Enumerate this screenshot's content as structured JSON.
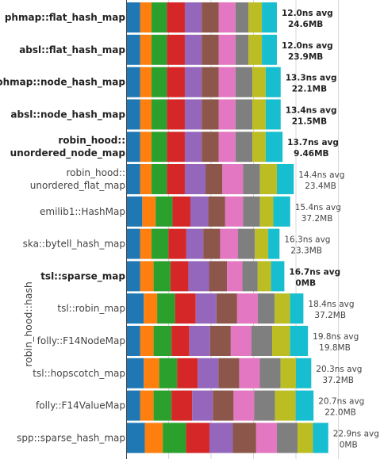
{
  "chart_data": {
    "type": "bar",
    "orientation": "horizontal",
    "stacked": true,
    "ylabel": "robin_hood::hash",
    "xlabel": "",
    "title": "",
    "grid": "vertical",
    "segment_colors": [
      "#1f77b4",
      "#ff7f0e",
      "#2ca02c",
      "#d62728",
      "#9467bd",
      "#8c564b",
      "#e377c2",
      "#7f7f7f",
      "#bcbd22",
      "#17becf"
    ],
    "categories": [
      {
        "label": [
          "phmap::flat_hash_map"
        ],
        "avg": "12.0ns avg",
        "mem": "24.6MB",
        "bold": true,
        "segments": [
          10.5,
          8.9,
          12.1,
          14.1,
          13.3,
          13.3,
          13.3,
          10.3,
          10.5,
          11.8
        ]
      },
      {
        "label": [
          "absl::flat_hash_map"
        ],
        "avg": "12.0ns avg",
        "mem": "23.9MB",
        "bold": true,
        "segments": [
          10.5,
          8.9,
          12.1,
          14.1,
          13.3,
          13.3,
          13.3,
          10.3,
          10.5,
          11.8
        ]
      },
      {
        "label": [
          "phmap::node_hash_map"
        ],
        "avg": "13.3ns avg",
        "mem": "22.1MB",
        "bold": true,
        "segments": [
          10.5,
          8.9,
          12.1,
          14.1,
          13.3,
          13.3,
          13.3,
          13.3,
          10.5,
          11.8
        ]
      },
      {
        "label": [
          "absl::node_hash_map"
        ],
        "avg": "13.4ns avg",
        "mem": "21.5MB",
        "bold": true,
        "segments": [
          10.5,
          8.9,
          12.1,
          14.1,
          13.3,
          13.3,
          13.3,
          13.3,
          10.5,
          11.8
        ]
      },
      {
        "label": [
          "robin_hood::",
          "unordered_node_map"
        ],
        "avg": "13.7ns avg",
        "mem": "9.46MB",
        "bold": true,
        "segments": [
          10.5,
          8.9,
          12.1,
          14.1,
          13.3,
          13.3,
          13.3,
          13.3,
          10.5,
          13.3
        ]
      },
      {
        "label": [
          "robin_hood::",
          "unordered_flat_map"
        ],
        "avg": "14.4ns avg",
        "mem": "23.4MB",
        "bold": false,
        "segments": [
          10.5,
          8.9,
          12.1,
          14.1,
          16.3,
          13.3,
          16.3,
          13.3,
          13.3,
          13.3
        ]
      },
      {
        "label": [
          "emilib1::HashMap"
        ],
        "avg": "15.4ns avg",
        "mem": "37.2MB",
        "bold": false,
        "segments": [
          12.1,
          10.5,
          13.3,
          14.1,
          14.1,
          13.3,
          14.1,
          13.3,
          10.5,
          13.3
        ]
      },
      {
        "label": [
          "ska::bytell_hash_map"
        ],
        "avg": "16.3ns avg",
        "mem": "23.3MB",
        "bold": false,
        "segments": [
          10.5,
          8.9,
          13.3,
          14.1,
          13.3,
          13.3,
          14.1,
          13.3,
          10.5,
          8.9
        ]
      },
      {
        "label": [
          "tsl::sparse_map"
        ],
        "avg": "16.7ns avg",
        "mem": "0MB",
        "bold": true,
        "segments": [
          10.5,
          10.5,
          13.3,
          14.1,
          16.3,
          14.1,
          12.1,
          12.1,
          10.5,
          10.5
        ]
      },
      {
        "label": [
          "tsl::robin_map"
        ],
        "avg": "18.4ns avg",
        "mem": "37.2MB",
        "bold": false,
        "segments": [
          13.3,
          10.5,
          14.1,
          16.3,
          16.3,
          16.3,
          16.3,
          13.3,
          12.1,
          10.5
        ]
      },
      {
        "label": [
          "folly::F14NodeMap"
        ],
        "avg": "19.8ns avg",
        "mem": "19.8MB",
        "bold": false,
        "segments": [
          10.5,
          10.5,
          14.1,
          14.1,
          16.3,
          16.3,
          16.3,
          16.3,
          14.1,
          14.1
        ]
      },
      {
        "label": [
          "tsl::hopscotch_map"
        ],
        "avg": "20.3ns avg",
        "mem": "37.2MB",
        "bold": false,
        "segments": [
          13.3,
          12.1,
          14.1,
          16.3,
          16.3,
          16.3,
          16.3,
          16.3,
          12.1,
          12.1
        ]
      },
      {
        "label": [
          "folly::F14ValueMap"
        ],
        "avg": "20.7ns avg",
        "mem": "22.0MB",
        "bold": false,
        "segments": [
          10.5,
          10.5,
          14.1,
          16.3,
          16.3,
          16.3,
          16.3,
          16.3,
          16.3,
          14.1
        ]
      },
      {
        "label": [
          "spp::sparse_hash_map"
        ],
        "avg": "22.9ns avg",
        "mem": "0MB",
        "bold": false,
        "segments": [
          14.1,
          14.1,
          18.4,
          18.4,
          18.4,
          18.4,
          16.3,
          16.3,
          12.1,
          12.1
        ]
      }
    ]
  }
}
